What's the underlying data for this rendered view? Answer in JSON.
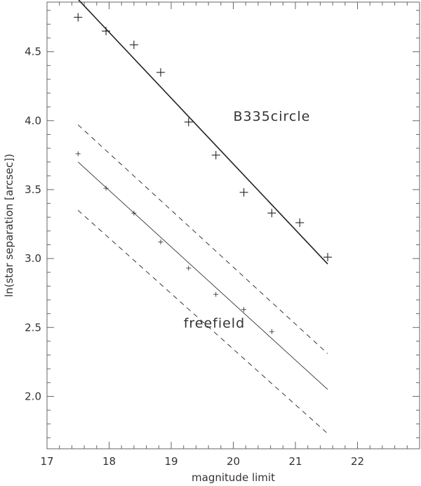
{
  "chart_data": {
    "type": "scatter",
    "xlabel": "magnitude limit",
    "ylabel": "ln(star separation [arcsec])",
    "xlim": [
      17.0,
      23.0
    ],
    "ylim": [
      1.62,
      4.86
    ],
    "xticks": [
      17,
      18,
      19,
      20,
      21,
      22
    ],
    "yticks": [
      2.0,
      2.5,
      3.0,
      3.5,
      4.0,
      4.5
    ],
    "xtick_labels": [
      "17",
      "18",
      "19",
      "20",
      "21",
      "22"
    ],
    "ytick_labels": [
      "2.0",
      "2.5",
      "3.0",
      "3.5",
      "4.0",
      "4.5"
    ],
    "grid": false,
    "series": [
      {
        "name": "B335circle",
        "marker": "plus-large",
        "x": [
          17.5,
          17.95,
          18.4,
          18.83,
          19.28,
          19.72,
          20.17,
          20.62,
          21.07,
          21.52
        ],
        "y": [
          4.75,
          4.65,
          4.55,
          4.35,
          3.99,
          3.75,
          3.48,
          3.33,
          3.26,
          3.01
        ]
      },
      {
        "name": "freefield",
        "marker": "plus-small",
        "x": [
          17.5,
          17.95,
          18.4,
          18.83,
          19.28,
          19.72,
          20.17,
          20.62
        ],
        "y": [
          3.76,
          3.51,
          3.33,
          3.12,
          2.93,
          2.74,
          2.63,
          2.47
        ]
      }
    ],
    "fit_lines": [
      {
        "style": "solid-thick",
        "x": [
          17.5,
          21.52
        ],
        "y": [
          4.88,
          2.96
        ]
      },
      {
        "style": "solid-thin",
        "x": [
          17.5,
          21.52
        ],
        "y": [
          3.7,
          2.05
        ]
      },
      {
        "style": "dashed",
        "x": [
          17.5,
          21.52
        ],
        "y": [
          3.97,
          2.31
        ]
      },
      {
        "style": "dashed",
        "x": [
          17.5,
          21.52
        ],
        "y": [
          3.35,
          1.73
        ]
      }
    ],
    "annotations": [
      {
        "text": "B335circle",
        "x": 20.0,
        "y": 4.0
      },
      {
        "text": "freefield",
        "x": 19.2,
        "y": 2.5
      }
    ],
    "colors": {
      "axis": "#666666",
      "data": "#222222",
      "text": "#333333",
      "background": "#ffffff"
    }
  }
}
